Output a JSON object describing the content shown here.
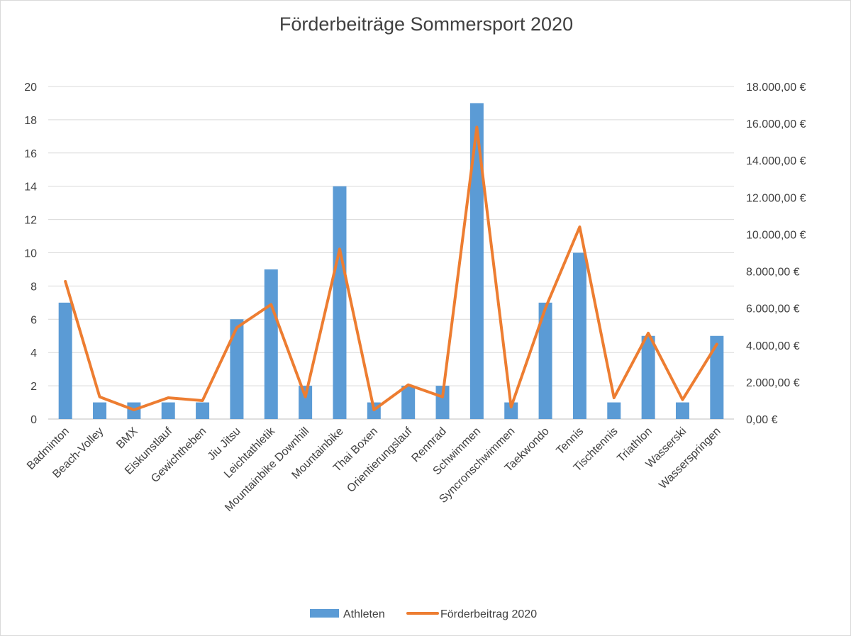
{
  "chart_data": {
    "type": "bar+line",
    "title": "Förderbeiträge Sommersport 2020",
    "categories": [
      "Badminton",
      "Beach-Volley",
      "BMX",
      "Eiskunstlauf",
      "Gewichtheben",
      "Jiu Jitsu",
      "Leichtathletik",
      "Mountainbike Downhill",
      "Mountainbike",
      "Thai Boxen",
      "Orientierungslauf",
      "Rennrad",
      "Schwimmen",
      "Syncronschwimmen",
      "Taekwondo",
      "Tennis",
      "Tischtennis",
      "Triathlon",
      "Wasserski",
      "Wasserspringen"
    ],
    "series": [
      {
        "name": "Athleten",
        "type": "bar",
        "axis": "left",
        "color": "#5b9bd5",
        "values": [
          7,
          1,
          1,
          1,
          1,
          6,
          9,
          2,
          14,
          1,
          2,
          2,
          19,
          1,
          7,
          10,
          1,
          5,
          1,
          5
        ]
      },
      {
        "name": "Förderbeitrag 2020",
        "type": "line",
        "axis": "right",
        "color": "#ed7d31",
        "values": [
          7450,
          1200,
          500,
          1150,
          1000,
          4950,
          6200,
          1200,
          9200,
          500,
          1850,
          1200,
          15800,
          650,
          6000,
          10400,
          1150,
          4650,
          1050,
          4050
        ]
      }
    ],
    "y_left": {
      "min": 0,
      "max": 20,
      "step": 2,
      "ticks": [
        "0",
        "2",
        "4",
        "6",
        "8",
        "10",
        "12",
        "14",
        "16",
        "18",
        "20"
      ]
    },
    "y_right": {
      "min": 0,
      "max": 18000,
      "step": 2000,
      "ticks": [
        "0,00 €",
        "2.000,00 €",
        "4.000,00 €",
        "6.000,00 €",
        "8.000,00 €",
        "10.000,00 €",
        "12.000,00 €",
        "14.000,00 €",
        "16.000,00 €",
        "18.000,00 €"
      ]
    },
    "legend": {
      "position": "bottom",
      "items": [
        "Athleten",
        "Förderbeitrag 2020"
      ]
    },
    "grid": true,
    "gridColor": "#d9d9d9"
  }
}
